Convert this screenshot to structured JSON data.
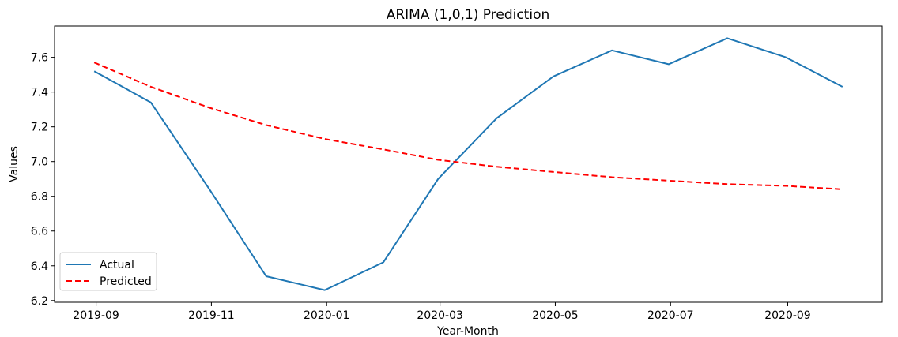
{
  "chart_data": {
    "type": "line",
    "title": "ARIMA (1,0,1) Prediction",
    "xlabel": "Year-Month",
    "ylabel": "Values",
    "x": [
      "2019-08-31",
      "2019-09-30",
      "2019-10-31",
      "2019-11-30",
      "2019-12-31",
      "2020-01-31",
      "2020-02-29",
      "2020-03-31",
      "2020-04-30",
      "2020-05-31",
      "2020-06-30",
      "2020-07-31",
      "2020-08-31",
      "2020-09-30"
    ],
    "xlim": [
      "2019-08-10",
      "2020-10-21"
    ],
    "xticks": [
      "2019-09-01",
      "2019-11-01",
      "2020-01-01",
      "2020-03-01",
      "2020-05-01",
      "2020-07-01",
      "2020-09-01"
    ],
    "xtick_labels": [
      "2019-09",
      "2019-11",
      "2020-01",
      "2020-03",
      "2020-05",
      "2020-07",
      "2020-09"
    ],
    "ylim": [
      6.19,
      7.78
    ],
    "yticks": [
      6.2,
      6.4,
      6.6,
      6.8,
      7.0,
      7.2,
      7.4,
      7.6
    ],
    "ytick_labels": [
      "6.2",
      "6.4",
      "6.6",
      "6.8",
      "7.0",
      "7.2",
      "7.4",
      "7.6"
    ],
    "series": [
      {
        "name": "Actual",
        "color": "#1f77b4",
        "style": "solid",
        "values": [
          7.52,
          7.34,
          6.84,
          6.34,
          6.26,
          6.42,
          6.9,
          7.25,
          7.49,
          7.64,
          7.56,
          7.71,
          7.6,
          7.43
        ]
      },
      {
        "name": "Predicted",
        "color": "#ff0000",
        "style": "dashed",
        "values": [
          7.57,
          7.43,
          7.31,
          7.21,
          7.13,
          7.07,
          7.01,
          6.97,
          6.94,
          6.91,
          6.89,
          6.87,
          6.86,
          6.84
        ]
      }
    ],
    "legend": {
      "position": "lower-left"
    },
    "grid": false
  }
}
